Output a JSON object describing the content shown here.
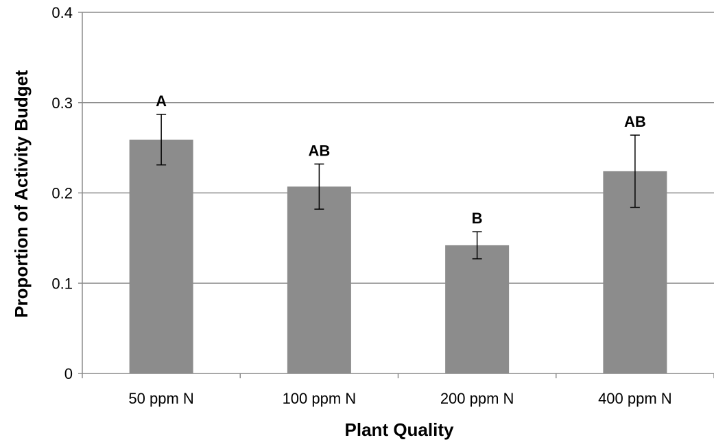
{
  "chart_data": {
    "type": "bar",
    "title": "",
    "xlabel": "Plant Quality",
    "ylabel": "Proportion of Activity Budget",
    "categories": [
      "50 ppm N",
      "100 ppm N",
      "200 ppm N",
      "400 ppm N"
    ],
    "values": [
      0.259,
      0.207,
      0.142,
      0.224
    ],
    "error_bars": [
      0.028,
      0.025,
      0.015,
      0.04
    ],
    "significance_labels": [
      "A",
      "AB",
      "B",
      "AB"
    ],
    "ylim": [
      0,
      0.4
    ],
    "yticks": [
      "0",
      "0.1",
      "0.2",
      "0.3",
      "0.4"
    ],
    "grid": true,
    "legend": "none",
    "bar_color": "#8c8c8c",
    "gridline_color": "#8c8c8c"
  }
}
